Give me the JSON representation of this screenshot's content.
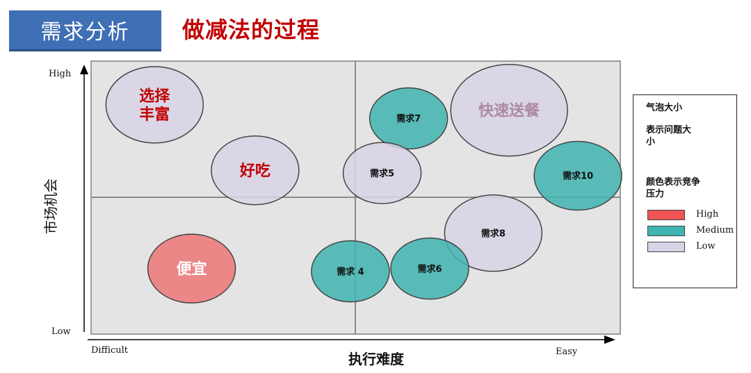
{
  "header": {
    "tab_label": "需求分析",
    "title": "做减法的过程"
  },
  "legend": {
    "size_title": "气泡大小",
    "size_desc": "表示问题大小",
    "color_title": "颜色表示竞争压力",
    "items": [
      {
        "label": "High",
        "color": "#f05454"
      },
      {
        "label": "Medium",
        "color": "#3fb4b0"
      },
      {
        "label": "Low",
        "color": "#d9d3e6"
      }
    ]
  },
  "chart_data": {
    "type": "bubble",
    "title": "",
    "xlabel": "执行难度",
    "ylabel": "市场机会",
    "x_tick_left": "Difficult",
    "x_tick_right": "Easy",
    "y_tick_top": "High",
    "y_tick_bottom": "Low",
    "xlim": [
      0,
      1
    ],
    "ylim": [
      0,
      1
    ],
    "quadrant_dividers": {
      "x": 0.5,
      "y": 0.5
    },
    "points": [
      {
        "label": "选择\n丰富",
        "x": 0.12,
        "y": 0.84,
        "size": 3,
        "competition": "Low",
        "label_color": "#c00000"
      },
      {
        "label": "好吃",
        "x": 0.31,
        "y": 0.6,
        "size": 2.5,
        "competition": "Low",
        "label_color": "#c00000"
      },
      {
        "label": "便宜",
        "x": 0.19,
        "y": 0.24,
        "size": 2.5,
        "competition": "High",
        "label_color": "#ffffff"
      },
      {
        "label": "需求7",
        "x": 0.6,
        "y": 0.79,
        "size": 2,
        "competition": "Medium",
        "label_color": "#111111"
      },
      {
        "label": "快速送餐",
        "x": 0.79,
        "y": 0.82,
        "size": 4,
        "competition": "Low",
        "label_color": "#ad8aa6"
      },
      {
        "label": "需求5",
        "x": 0.55,
        "y": 0.59,
        "size": 2,
        "competition": "Low",
        "label_color": "#111111"
      },
      {
        "label": "需求10",
        "x": 0.92,
        "y": 0.58,
        "size": 2.5,
        "competition": "Medium",
        "label_color": "#111111"
      },
      {
        "label": "需求8",
        "x": 0.76,
        "y": 0.37,
        "size": 3,
        "competition": "Low",
        "label_color": "#111111"
      },
      {
        "label": "需求 4",
        "x": 0.49,
        "y": 0.23,
        "size": 2,
        "competition": "Medium",
        "label_color": "#111111"
      },
      {
        "label": "需求6",
        "x": 0.64,
        "y": 0.24,
        "size": 2,
        "competition": "Medium",
        "label_color": "#111111"
      }
    ]
  }
}
